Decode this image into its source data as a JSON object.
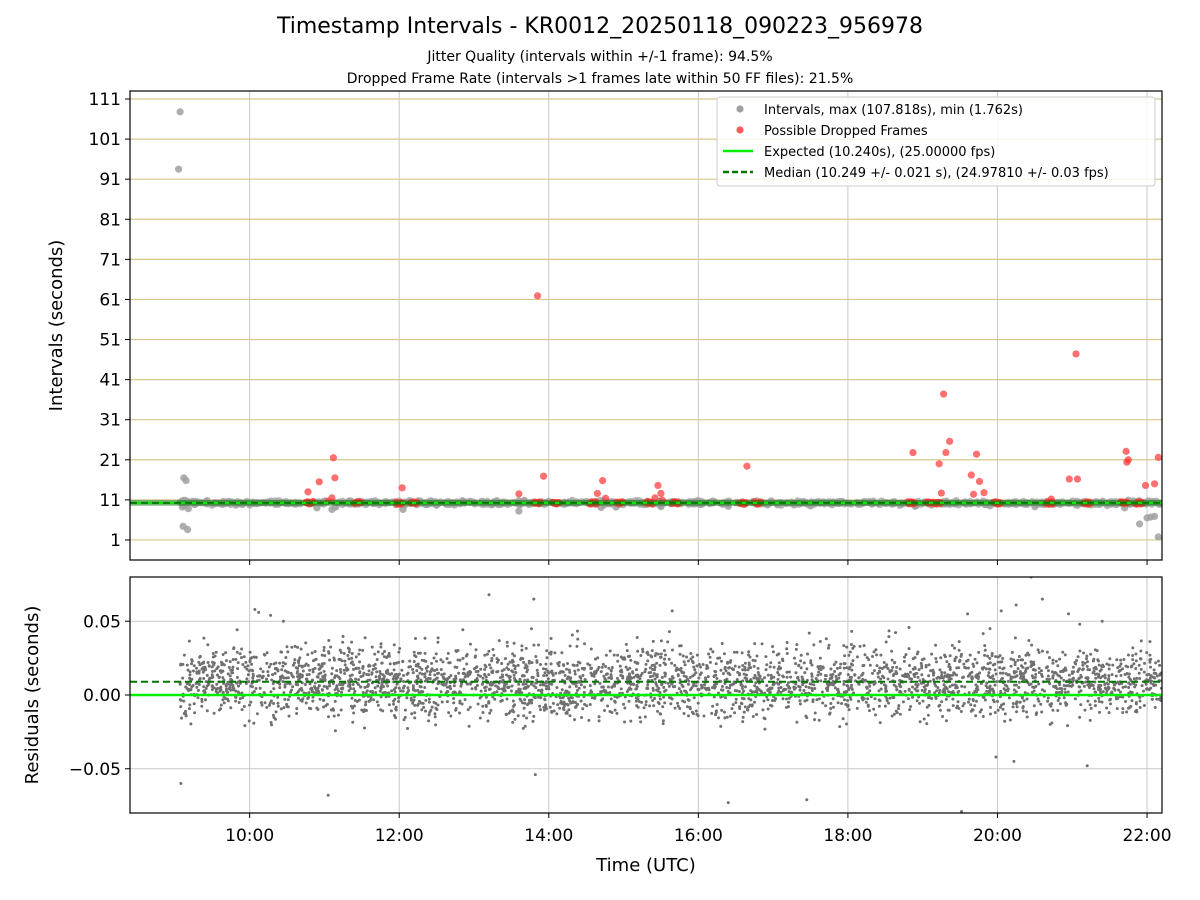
{
  "figure": {
    "title": "Timestamp Intervals - KR0012_20250118_090223_956978",
    "subtitle_1": "Jitter Quality (intervals within +/-1 frame): 94.5%",
    "subtitle_2": "Dropped Frame Rate (intervals >1 frames late within 50 FF files): 21.5%"
  },
  "colors": {
    "intervals": "#a0a0a0",
    "dropped": "#ff3333",
    "expected": "#00ee00",
    "median": "#007700",
    "residuals": "#707070",
    "hgrid_top": "#d8c88c",
    "grid": "#c8c8c8"
  },
  "chart_data": [
    {
      "type": "scatter",
      "ylabel": "Intervals (seconds)",
      "xlabel": "",
      "x_unit": "hours UTC",
      "xlim": [
        8.4,
        22.2
      ],
      "ylim": [
        -4,
        113
      ],
      "y_ticks": [
        1,
        11,
        21,
        31,
        41,
        51,
        61,
        71,
        81,
        91,
        101,
        111
      ],
      "grid": "horizontal gold lines at each tick, vertical grey lines at each x tick",
      "legend_position": "top-right",
      "legend": [
        "Intervals, max (107.818s), min (1.762s)",
        "Possible Dropped Frames",
        "Expected (10.240s), (25.00000 fps)",
        "Median (10.249 +/- 0.021 s), (24.97810 +/- 0.03 fps)"
      ],
      "series": [
        {
          "name": "Intervals, max (107.818s), min (1.762s)",
          "style": "points",
          "x": [
            9.07,
            9.05,
            9.12,
            9.15,
            9.1,
            9.13,
            9.1,
            9.18,
            9.11,
            9.17,
            9.14,
            10.9,
            11.1,
            11.15,
            12.05,
            13.6,
            14.7,
            14.9,
            15.5,
            16.4,
            17.5,
            18.9,
            19.9,
            20.5,
            21.7,
            21.75,
            21.9,
            22.0,
            22.05,
            22.1,
            22.15
          ],
          "y": [
            107.8,
            93.5,
            16.5,
            15.8,
            10.8,
            10.9,
            9.2,
            8.8,
            4.4,
            3.6,
            9.8,
            9.0,
            8.6,
            9.2,
            8.6,
            8.2,
            9.1,
            9.2,
            9.3,
            9.4,
            9.5,
            9.4,
            9.5,
            9.3,
            9.0,
            10.9,
            5.0,
            6.5,
            6.7,
            6.9,
            1.76
          ]
        },
        {
          "name": "Possible Dropped Frames",
          "style": "points",
          "x": [
            10.78,
            10.93,
            11.12,
            11.14,
            11.1,
            11.05,
            10.85,
            12.04,
            13.6,
            13.85,
            13.93,
            14.65,
            14.72,
            14.76,
            15.42,
            15.46,
            15.5,
            15.52,
            16.65,
            18.87,
            19.22,
            19.28,
            19.31,
            19.36,
            19.25,
            19.65,
            19.72,
            19.76,
            19.68,
            19.82,
            20.72,
            20.96,
            21.05,
            21.07,
            21.72,
            21.73,
            21.75,
            21.98,
            22.1,
            22.15
          ],
          "y": [
            13.0,
            15.5,
            21.5,
            16.5,
            11.5,
            10.7,
            10.5,
            14.0,
            12.5,
            61.9,
            16.9,
            12.6,
            15.8,
            11.4,
            11.5,
            14.6,
            12.6,
            10.9,
            19.4,
            22.8,
            20.0,
            37.4,
            22.8,
            25.6,
            12.7,
            17.2,
            22.4,
            15.6,
            12.4,
            12.8,
            11.2,
            16.2,
            47.4,
            16.2,
            23.1,
            20.4,
            21.0,
            14.6,
            15.0,
            21.6
          ]
        },
        {
          "name": "Possible Dropped Frames (cluster near 10.2 s)",
          "style": "clusters",
          "x": [
            10.8,
            11.45,
            12.0,
            12.2,
            13.85,
            14.1,
            14.6,
            14.95,
            15.35,
            15.7,
            16.6,
            16.8,
            18.85,
            19.1,
            19.2,
            20.0,
            20.7,
            21.2,
            21.7,
            21.9
          ],
          "y": [
            10.24,
            10.24,
            10.24,
            10.24,
            10.24,
            10.24,
            10.24,
            10.24,
            10.24,
            10.24,
            10.24,
            10.24,
            10.24,
            10.24,
            10.24,
            10.24,
            10.24,
            10.24,
            10.24,
            10.24
          ]
        },
        {
          "name": "Expected (10.240s), (25.00000 fps)",
          "style": "line",
          "y": 10.24
        },
        {
          "name": "Median (10.249 +/- 0.021 s), (24.97810 +/- 0.03 fps)",
          "style": "dashed line",
          "y": 10.249
        }
      ]
    },
    {
      "type": "scatter",
      "xlabel": "Time (UTC)",
      "ylabel": "Residuals (seconds)",
      "xlim": [
        8.4,
        22.2
      ],
      "ylim": [
        -0.08,
        0.08
      ],
      "x_ticks": [
        "10:00",
        "12:00",
        "14:00",
        "16:00",
        "18:00",
        "20:00",
        "22:00"
      ],
      "y_ticks": [
        "0.05",
        "0.00",
        "−0.05"
      ],
      "grid": "on",
      "series": [
        {
          "name": "Residuals",
          "style": "dense points",
          "x_range": [
            9.07,
            22.2
          ],
          "y_center": 0.009,
          "y_spread": 0.012
        },
        {
          "name": "Residual outliers",
          "style": "points",
          "x": [
            9.08,
            10.07,
            10.12,
            10.28,
            10.45,
            11.05,
            13.2,
            13.8,
            13.82,
            15.65,
            16.4,
            17.45,
            19.52,
            19.6,
            19.9,
            19.98,
            20.05,
            20.22,
            20.25,
            20.45,
            20.6,
            20.95,
            21.1,
            21.2,
            21.4
          ],
          "y": [
            -0.06,
            0.058,
            0.056,
            0.054,
            0.05,
            -0.068,
            0.068,
            0.065,
            -0.054,
            0.057,
            -0.073,
            -0.071,
            -0.079,
            0.055,
            0.045,
            -0.042,
            0.057,
            -0.045,
            0.061,
            0.08,
            0.065,
            0.055,
            0.048,
            -0.048,
            0.05
          ]
        },
        {
          "name": "Expected",
          "style": "line",
          "y": 0.0
        },
        {
          "name": "Median",
          "style": "dashed line",
          "y": 0.009
        }
      ]
    }
  ]
}
